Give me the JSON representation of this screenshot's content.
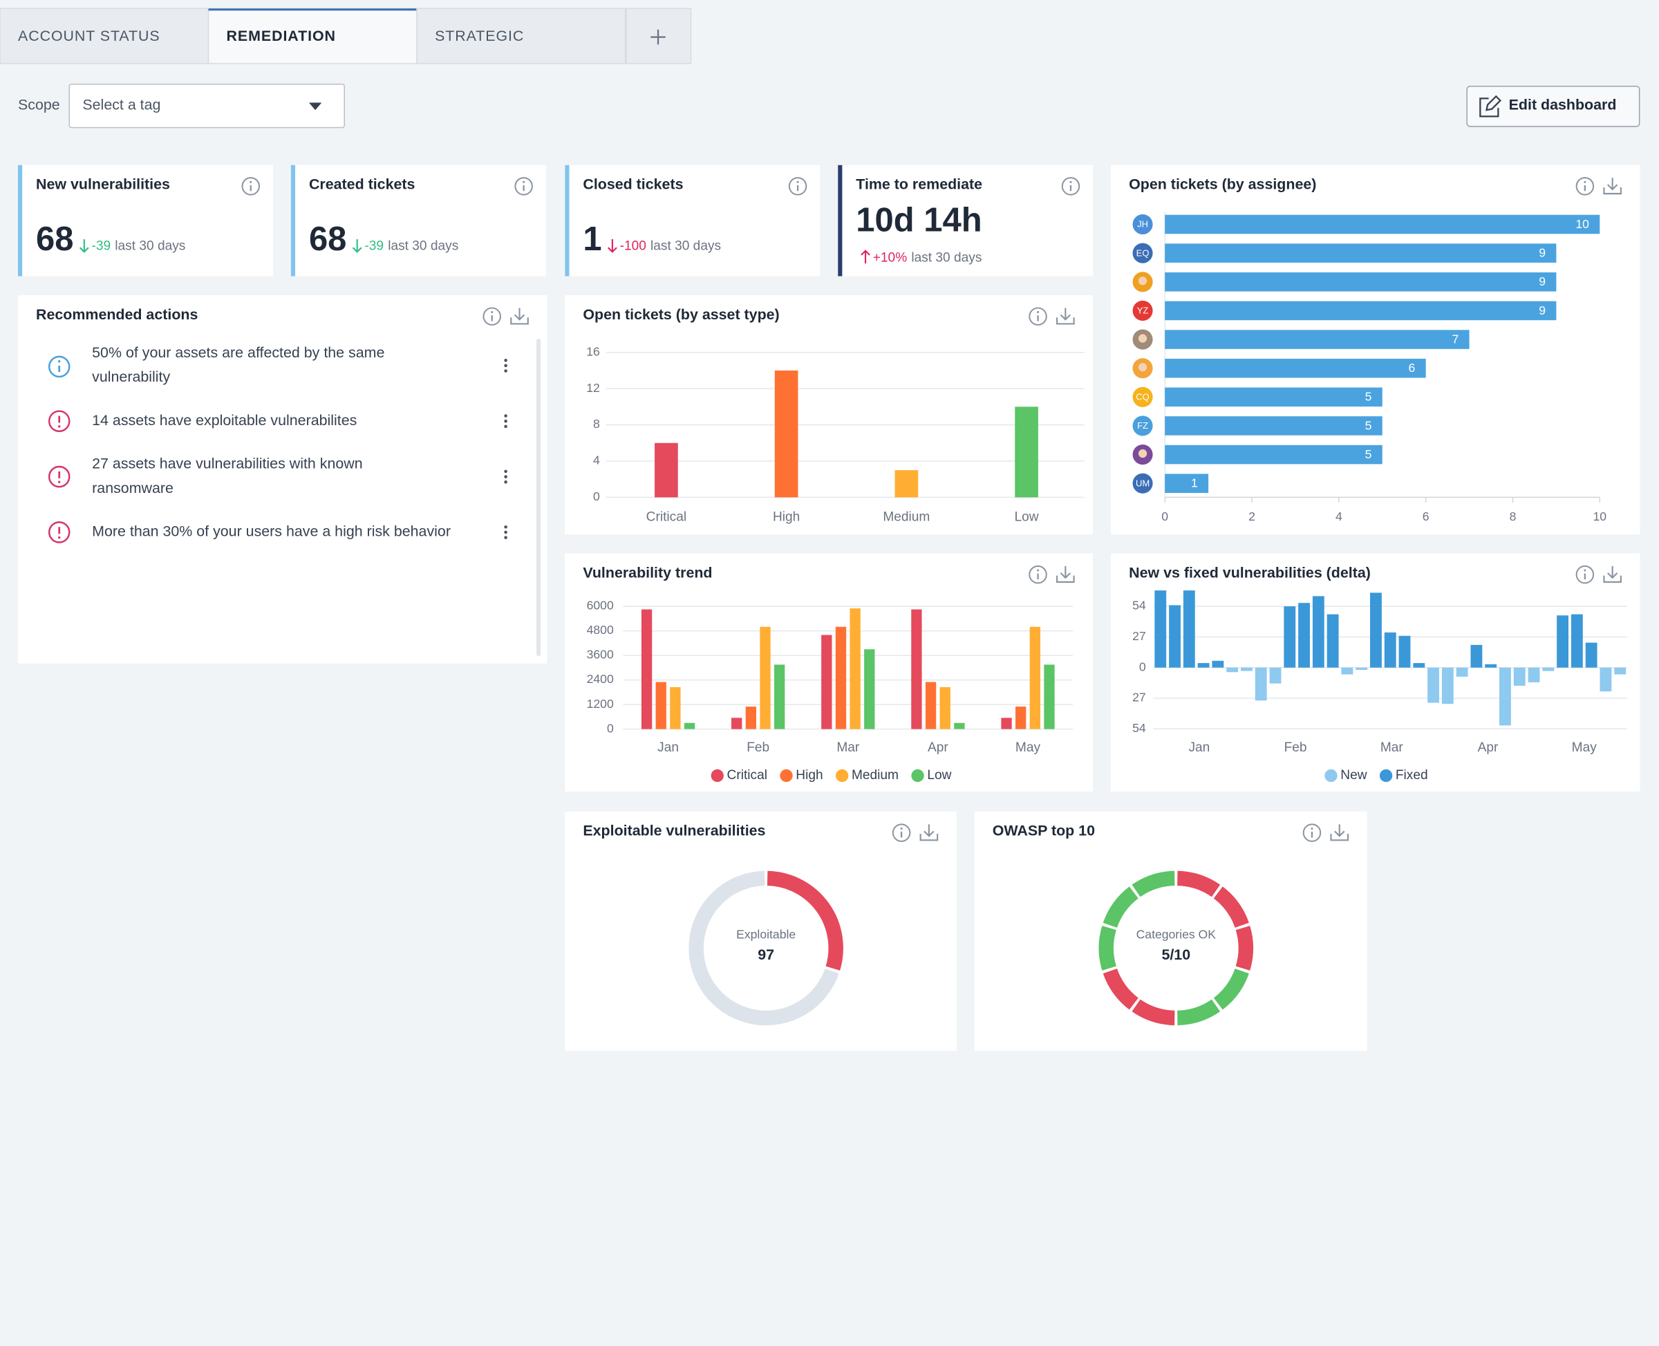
{
  "tabs": [
    "ACCOUNT STATUS",
    "REMEDIATION",
    "STRATEGIC"
  ],
  "active_tab": 1,
  "scope": {
    "label": "Scope",
    "placeholder": "Select a tag"
  },
  "edit_button": "Edit dashboard",
  "kpis": [
    {
      "title": "New vulnerabilities",
      "value": 68,
      "delta": -39,
      "period": "last 30 days",
      "trend": "down",
      "delta_color": "#2fbf85",
      "accent": "#7fc4ec"
    },
    {
      "title": "Created tickets",
      "value": 68,
      "delta": -39,
      "period": "last 30 days",
      "trend": "down",
      "delta_color": "#2fbf85",
      "accent": "#7fc4ec"
    },
    {
      "title": "Closed tickets",
      "value": 1,
      "delta": -100,
      "period": "last 30 days",
      "trend": "down",
      "delta_color": "#e0245e",
      "accent": "#7fc4ec"
    },
    {
      "title": "Time to remediate",
      "value": "10d 14h",
      "delta": "+10%",
      "period": "last 30 days",
      "trend": "up",
      "delta_color": "#e0245e",
      "accent": "#2b3d6b"
    }
  ],
  "recommended": {
    "title": "Recommended actions",
    "items": [
      {
        "kind": "info",
        "lines": [
          "50% of your assets are affected by the same",
          "vulnerability"
        ]
      },
      {
        "kind": "alert",
        "lines": [
          "14 assets have exploitable vulnerabilites"
        ]
      },
      {
        "kind": "alert",
        "lines": [
          "27 assets have vulnerabilities with known",
          "ransomware"
        ]
      },
      {
        "kind": "alert",
        "lines": [
          "More than 30% of your users have a high risk behavior"
        ]
      }
    ]
  },
  "chart_data": [
    {
      "type": "bar",
      "title": "Open tickets (by asset type)",
      "categories": [
        "Critical",
        "High",
        "Medium",
        "Low"
      ],
      "values": [
        6,
        14,
        3,
        10
      ],
      "colors": [
        "#e5495c",
        "#ff7133",
        "#ffae33",
        "#5bc466"
      ],
      "ylim": [
        0,
        16
      ],
      "yticks": [
        0,
        4,
        8,
        12,
        16
      ],
      "grid": true
    },
    {
      "type": "hbar",
      "title": "Open tickets (by assignee)",
      "categories": [
        "JH",
        "EQ",
        null,
        "YZ",
        null,
        null,
        "CQ",
        "FZ",
        null,
        "UM"
      ],
      "category_colors": [
        "#4a90d9",
        "#3a6db5",
        "#f0a020",
        "#e53935",
        "#a08a7a",
        "#f3a43a",
        "#f5b21a",
        "#4a9fdd",
        "#7b4a9a",
        "#3a6db5"
      ],
      "values": [
        10,
        9,
        9,
        9,
        7,
        6,
        5,
        5,
        5,
        1
      ],
      "color": "#4aa3df",
      "xlim": [
        0,
        10
      ],
      "xticks": [
        0,
        2,
        4,
        6,
        8,
        10
      ]
    },
    {
      "type": "grouped_bar",
      "title": "Vulnerability trend",
      "categories": [
        "Jan",
        "Feb",
        "Mar",
        "Apr",
        "May"
      ],
      "series": [
        {
          "name": "Critical",
          "color": "#e5495c",
          "values": [
            5850,
            550,
            4600,
            5850,
            550
          ]
        },
        {
          "name": "High",
          "color": "#ff7133",
          "values": [
            2300,
            1100,
            5000,
            2300,
            1100
          ]
        },
        {
          "name": "Medium",
          "color": "#ffae33",
          "values": [
            2050,
            5000,
            5900,
            2050,
            5000
          ]
        },
        {
          "name": "Low",
          "color": "#5bc466",
          "values": [
            300,
            3150,
            3900,
            300,
            3150
          ]
        }
      ],
      "ylim": [
        0,
        6000
      ],
      "yticks": [
        0,
        1200,
        2400,
        3600,
        4800,
        6000
      ],
      "grid": true
    },
    {
      "type": "delta_bar",
      "title": "New vs fixed vulnerabilities (delta)",
      "x": [
        0,
        1,
        2,
        3,
        4,
        5,
        6,
        7,
        8,
        9,
        10,
        11,
        12,
        13,
        14,
        15,
        16,
        17,
        18,
        19,
        20,
        21,
        22,
        23,
        24,
        25,
        26,
        27,
        28,
        29,
        30,
        31,
        32
      ],
      "series": [
        {
          "name": "New",
          "color": "#8ec9ef",
          "values": [
            null,
            null,
            null,
            null,
            null,
            -4,
            -3,
            -29,
            -14,
            null,
            null,
            null,
            null,
            -6,
            -2,
            null,
            null,
            null,
            null,
            -31,
            -32,
            -8,
            null,
            null,
            -51,
            -16,
            -13,
            -3,
            null,
            null,
            null,
            -21,
            -6
          ]
        },
        {
          "name": "Fixed",
          "color": "#3b98d8",
          "values": [
            68,
            55,
            68,
            4,
            6,
            null,
            null,
            null,
            null,
            54,
            57,
            63,
            47,
            null,
            null,
            66,
            31,
            28,
            4,
            null,
            null,
            null,
            20,
            3,
            null,
            null,
            null,
            null,
            46,
            47,
            22,
            null,
            null
          ]
        }
      ],
      "xlim": [
        -0.5,
        32.5
      ],
      "xticks": [
        {
          "value": 2.7,
          "label": "Jan"
        },
        {
          "value": 9.4,
          "label": "Feb"
        },
        {
          "value": 16.1,
          "label": "Mar"
        },
        {
          "value": 22.8,
          "label": "Apr"
        },
        {
          "value": 29.5,
          "label": "May"
        }
      ],
      "ylim": [
        -57,
        68
      ],
      "yticks": [
        {
          "value": -54,
          "label": "54"
        },
        {
          "value": -27,
          "label": "27"
        },
        0,
        27,
        54
      ],
      "grid": true
    },
    {
      "type": "donut",
      "title": "Exploitable vulnerabilities",
      "center_label": "Exploitable",
      "center_value": 97,
      "values": [
        30,
        70
      ],
      "colors": [
        "#e5495c",
        "#dde3ea"
      ]
    },
    {
      "type": "donut",
      "title": "OWASP top 10",
      "center_label": "Categories OK",
      "center_value": "5/10",
      "values": [
        1,
        1,
        1,
        1,
        1,
        1,
        1,
        1,
        1,
        1
      ],
      "colors": [
        "#e5495c",
        "#e5495c",
        "#e5495c",
        "#5bc466",
        "#5bc466",
        "#e5495c",
        "#e5495c",
        "#5bc466",
        "#5bc466",
        "#5bc466"
      ]
    }
  ]
}
